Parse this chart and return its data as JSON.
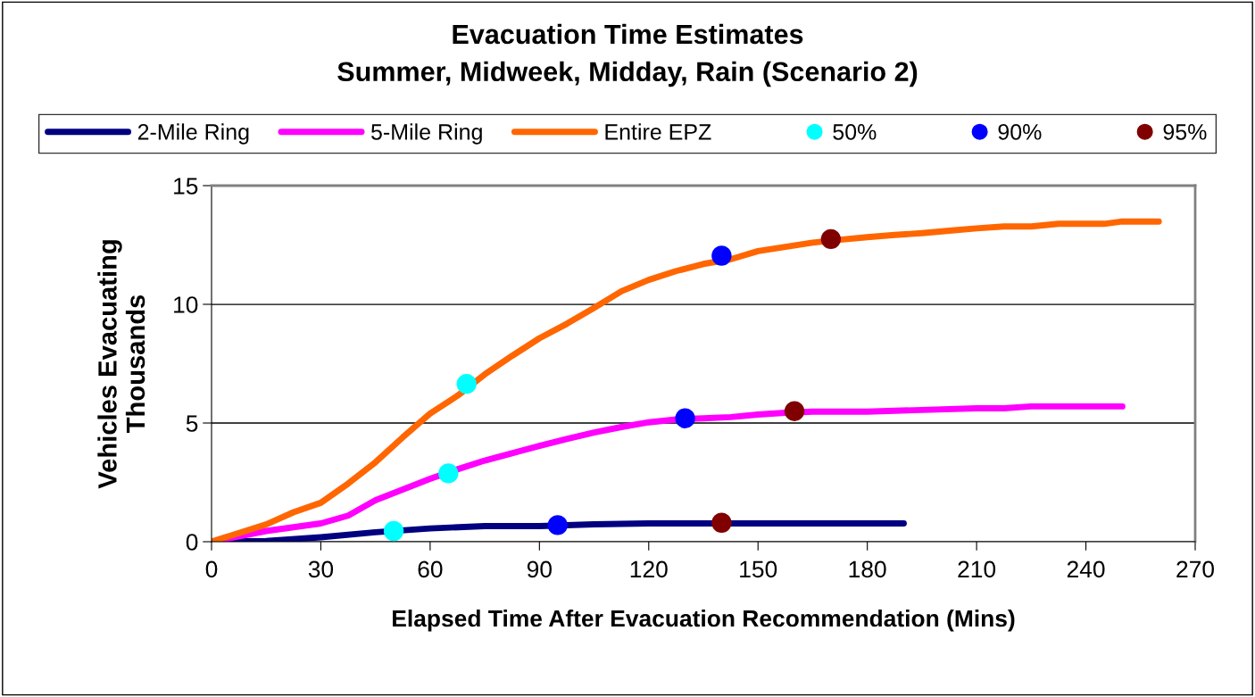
{
  "chart_data": {
    "type": "line",
    "title": "Evacuation Time Estimates\nSummer, Midweek, Midday, Rain (Scenario 2)",
    "xlabel": "Elapsed Time After Evacuation Recommendation (Mins)",
    "ylabel": "Vehicles Evacuating\nThousands",
    "xlim": [
      0,
      270
    ],
    "xticks": [
      0,
      30,
      60,
      90,
      120,
      150,
      180,
      210,
      240,
      270
    ],
    "ylim": [
      0,
      15
    ],
    "yticks": [
      0,
      5,
      10,
      15
    ],
    "grid": "y",
    "legend": "top",
    "marker": "none",
    "line_style": "solid",
    "series": [
      {
        "name": "2-Mile Ring",
        "color": "#000080",
        "x": [
          0,
          15,
          30,
          45,
          60,
          75,
          90,
          105,
          120,
          135,
          150,
          165,
          180,
          190
        ],
        "values": [
          0,
          0.03,
          0.19,
          0.4,
          0.56,
          0.66,
          0.66,
          0.73,
          0.77,
          0.77,
          0.77,
          0.77,
          0.77,
          0.77
        ]
      },
      {
        "name": "5-Mile Ring",
        "color": "#ff00ff",
        "x": [
          0,
          15,
          30,
          37.5,
          45,
          52.5,
          60,
          67.5,
          75,
          82.5,
          90,
          97.5,
          105,
          112.5,
          120,
          127.5,
          135,
          142.5,
          150,
          157.5,
          165,
          180,
          195,
          210,
          217.5,
          225,
          240,
          250
        ],
        "values": [
          0,
          0.45,
          0.77,
          1.1,
          1.75,
          2.2,
          2.65,
          3.05,
          3.42,
          3.73,
          4.04,
          4.33,
          4.6,
          4.83,
          5.03,
          5.15,
          5.2,
          5.25,
          5.36,
          5.43,
          5.48,
          5.48,
          5.55,
          5.62,
          5.62,
          5.7,
          5.7,
          5.7
        ]
      },
      {
        "name": "Entire EPZ",
        "color": "#ff6600",
        "x": [
          0,
          15,
          22.5,
          30,
          37.5,
          45,
          52.5,
          60,
          67.5,
          75,
          82.5,
          90,
          97.5,
          105,
          112.5,
          120,
          127.5,
          135,
          142.5,
          150,
          157.5,
          165,
          172.5,
          180,
          187.5,
          195,
          202.5,
          210,
          217.5,
          225,
          232.5,
          245,
          250,
          260
        ],
        "values": [
          0,
          0.73,
          1.24,
          1.64,
          2.45,
          3.35,
          4.4,
          5.4,
          6.15,
          7.05,
          7.83,
          8.57,
          9.18,
          9.85,
          10.55,
          11.03,
          11.4,
          11.7,
          11.9,
          12.24,
          12.42,
          12.6,
          12.72,
          12.83,
          12.92,
          13.0,
          13.1,
          13.2,
          13.28,
          13.28,
          13.39,
          13.39,
          13.49,
          13.49
        ]
      },
      {
        "name": "50%",
        "type": "scatter",
        "marker": "circle",
        "color": "#00ffff",
        "x": [
          50,
          65,
          70
        ],
        "values": [
          0.45,
          2.88,
          6.65
        ]
      },
      {
        "name": "90%",
        "type": "scatter",
        "marker": "circle",
        "color": "#0000ff",
        "x": [
          95,
          130,
          140
        ],
        "values": [
          0.7,
          5.2,
          12.05
        ]
      },
      {
        "name": "95%",
        "type": "scatter",
        "marker": "circle",
        "color": "#800000",
        "x": [
          140,
          160,
          170
        ],
        "values": [
          0.8,
          5.5,
          12.75
        ]
      }
    ]
  }
}
